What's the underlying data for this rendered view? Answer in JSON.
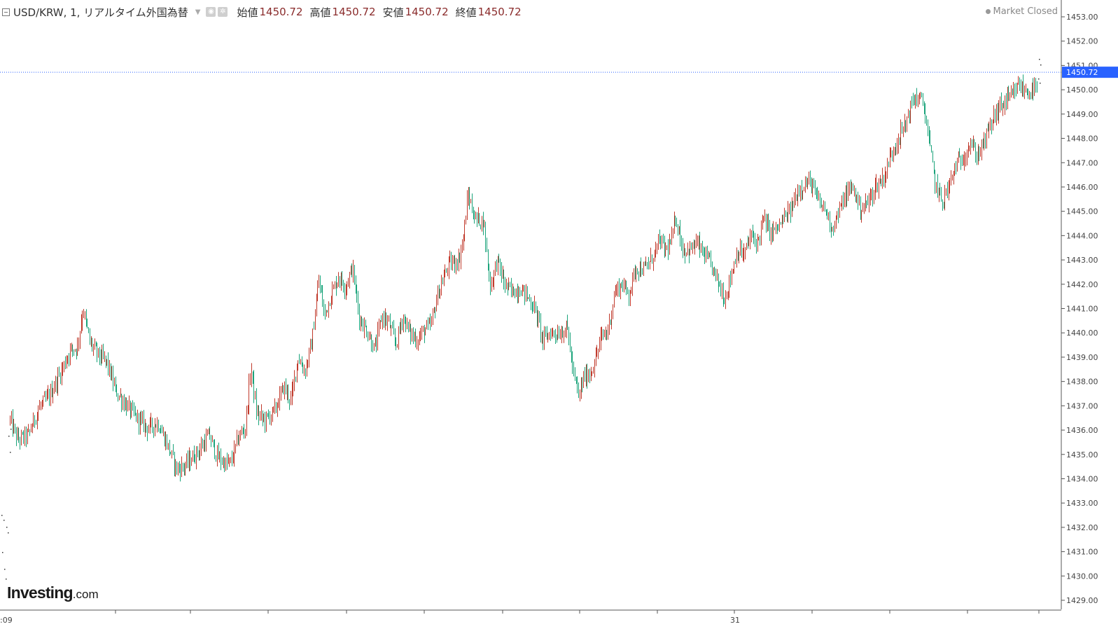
{
  "header": {
    "symbol": "USD/KRW, 1, リアルタイム外国為替",
    "open_label": "始値",
    "open_value": "1450.72",
    "high_label": "高値",
    "high_value": "1450.72",
    "low_label": "安値",
    "low_value": "1450.72",
    "close_label": "終値",
    "close_value": "1450.72",
    "status": "Market Closed"
  },
  "brand": {
    "name": "Investing",
    "suffix": ".com"
  },
  "colors": {
    "up": "#c0392b",
    "down": "#1aa37a",
    "price_line": "#2962ff",
    "price_tag_bg": "#2962ff",
    "axis_text": "#444444",
    "grid": "#e0e3eb"
  },
  "chart_data": {
    "type": "candlestick",
    "interval": "1",
    "x_tick_labels": [
      ":09",
      "31"
    ],
    "y_ticks": [
      1429,
      1430,
      1431,
      1432,
      1433,
      1434,
      1435,
      1436,
      1437,
      1438,
      1439,
      1440,
      1441,
      1442,
      1443,
      1444,
      1445,
      1446,
      1447,
      1448,
      1449,
      1450,
      1451,
      1452,
      1453
    ],
    "ylim": [
      1428.5,
      1453.5
    ],
    "last_price": 1450.72,
    "last_price_label": "1450.72",
    "path": [
      [
        0,
        1436.5
      ],
      [
        10,
        1436.7
      ],
      [
        25,
        1435.6
      ],
      [
        40,
        1435.8
      ],
      [
        55,
        1436.9
      ],
      [
        70,
        1437.4
      ],
      [
        85,
        1438.3
      ],
      [
        100,
        1439.3
      ],
      [
        110,
        1439.4
      ],
      [
        118,
        1441.0
      ],
      [
        128,
        1439.6
      ],
      [
        140,
        1439.1
      ],
      [
        152,
        1438.8
      ],
      [
        165,
        1437.6
      ],
      [
        180,
        1437.0
      ],
      [
        195,
        1436.5
      ],
      [
        210,
        1436.1
      ],
      [
        225,
        1436.3
      ],
      [
        240,
        1435.3
      ],
      [
        252,
        1434.4
      ],
      [
        262,
        1434.5
      ],
      [
        272,
        1434.8
      ],
      [
        285,
        1435.2
      ],
      [
        298,
        1435.8
      ],
      [
        310,
        1434.9
      ],
      [
        322,
        1434.6
      ],
      [
        330,
        1434.7
      ],
      [
        340,
        1435.7
      ],
      [
        350,
        1436.1
      ],
      [
        358,
        1438.6
      ],
      [
        366,
        1436.7
      ],
      [
        378,
        1436.4
      ],
      [
        392,
        1436.8
      ],
      [
        405,
        1437.8
      ],
      [
        415,
        1437.2
      ],
      [
        425,
        1439.0
      ],
      [
        435,
        1438.4
      ],
      [
        445,
        1439.6
      ],
      [
        455,
        1442.2
      ],
      [
        463,
        1440.7
      ],
      [
        473,
        1441.6
      ],
      [
        483,
        1442.3
      ],
      [
        493,
        1441.9
      ],
      [
        503,
        1442.7
      ],
      [
        513,
        1440.6
      ],
      [
        525,
        1440.0
      ],
      [
        535,
        1439.3
      ],
      [
        545,
        1440.7
      ],
      [
        555,
        1440.4
      ],
      [
        565,
        1439.5
      ],
      [
        575,
        1440.7
      ],
      [
        585,
        1440.0
      ],
      [
        595,
        1439.7
      ],
      [
        605,
        1440.1
      ],
      [
        615,
        1440.3
      ],
      [
        625,
        1441.6
      ],
      [
        640,
        1442.8
      ],
      [
        655,
        1443.0
      ],
      [
        662,
        1444.0
      ],
      [
        668,
        1445.7
      ],
      [
        678,
        1444.7
      ],
      [
        690,
        1444.6
      ],
      [
        700,
        1441.9
      ],
      [
        710,
        1443.0
      ],
      [
        720,
        1442.0
      ],
      [
        730,
        1441.7
      ],
      [
        745,
        1441.8
      ],
      [
        755,
        1441.4
      ],
      [
        765,
        1440.9
      ],
      [
        775,
        1439.7
      ],
      [
        785,
        1440.0
      ],
      [
        800,
        1440.0
      ],
      [
        810,
        1440.2
      ],
      [
        818,
        1438.4
      ],
      [
        826,
        1437.4
      ],
      [
        834,
        1438.2
      ],
      [
        842,
        1438.3
      ],
      [
        850,
        1438.9
      ],
      [
        858,
        1439.8
      ],
      [
        868,
        1440.1
      ],
      [
        878,
        1441.7
      ],
      [
        888,
        1442.0
      ],
      [
        898,
        1441.6
      ],
      [
        908,
        1442.7
      ],
      [
        920,
        1442.6
      ],
      [
        930,
        1443.0
      ],
      [
        942,
        1443.8
      ],
      [
        950,
        1443.4
      ],
      [
        958,
        1443.7
      ],
      [
        965,
        1444.8
      ],
      [
        975,
        1443.4
      ],
      [
        985,
        1443.4
      ],
      [
        995,
        1443.7
      ],
      [
        1005,
        1443.2
      ],
      [
        1015,
        1442.8
      ],
      [
        1025,
        1442.1
      ],
      [
        1035,
        1441.4
      ],
      [
        1045,
        1442.5
      ],
      [
        1053,
        1443.4
      ],
      [
        1062,
        1443.2
      ],
      [
        1072,
        1444.0
      ],
      [
        1082,
        1443.7
      ],
      [
        1090,
        1444.7
      ],
      [
        1100,
        1444.1
      ],
      [
        1110,
        1444.3
      ],
      [
        1120,
        1444.7
      ],
      [
        1130,
        1445.1
      ],
      [
        1140,
        1445.9
      ],
      [
        1148,
        1446.1
      ],
      [
        1158,
        1446.2
      ],
      [
        1168,
        1445.4
      ],
      [
        1178,
        1445.1
      ],
      [
        1188,
        1444.3
      ],
      [
        1198,
        1445.0
      ],
      [
        1208,
        1445.7
      ],
      [
        1218,
        1446.0
      ],
      [
        1228,
        1445.1
      ],
      [
        1238,
        1445.3
      ],
      [
        1250,
        1446.0
      ],
      [
        1262,
        1446.4
      ],
      [
        1272,
        1447.3
      ],
      [
        1282,
        1448.0
      ],
      [
        1292,
        1448.5
      ],
      [
        1300,
        1449.3
      ],
      [
        1308,
        1449.7
      ],
      [
        1318,
        1449.5
      ],
      [
        1325,
        1448.2
      ],
      [
        1330,
        1447.2
      ],
      [
        1335,
        1446.2
      ],
      [
        1345,
        1445.4
      ],
      [
        1355,
        1446.0
      ],
      [
        1365,
        1446.9
      ],
      [
        1375,
        1447.2
      ],
      [
        1385,
        1447.8
      ],
      [
        1395,
        1447.3
      ],
      [
        1405,
        1447.8
      ],
      [
        1415,
        1448.6
      ],
      [
        1425,
        1449.2
      ],
      [
        1435,
        1449.5
      ],
      [
        1445,
        1449.7
      ],
      [
        1455,
        1450.2
      ],
      [
        1465,
        1449.9
      ],
      [
        1475,
        1450.0
      ],
      [
        1482,
        1450.0
      ]
    ]
  }
}
